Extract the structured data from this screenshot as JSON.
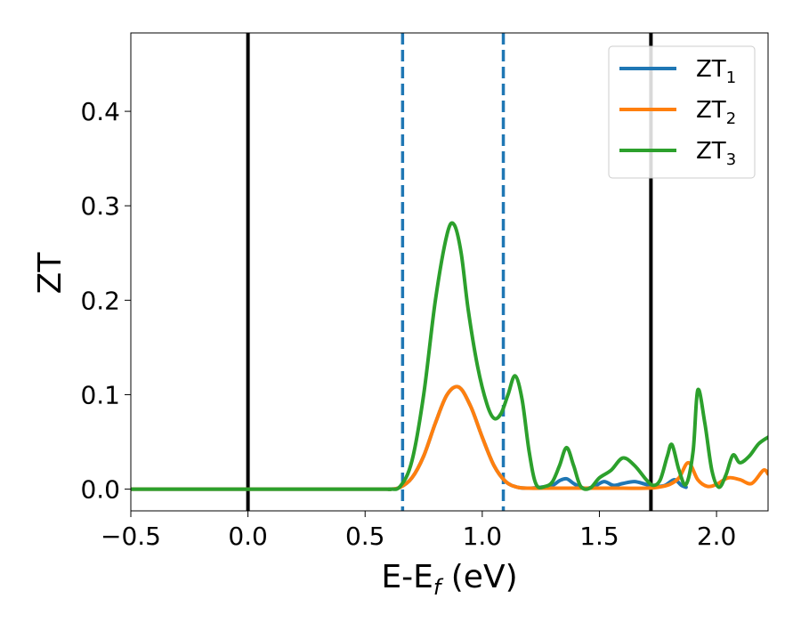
{
  "chart_data": {
    "type": "line",
    "xlabel": "E-E",
    "xlabel_sub": "f",
    "xlabel_unit": " (eV)",
    "ylabel": "ZT",
    "xlim": [
      -0.5,
      2.22
    ],
    "ylim": [
      -0.023,
      0.483
    ],
    "xticks": [
      -0.5,
      0.0,
      0.5,
      1.0,
      1.5,
      2.0
    ],
    "xtick_labels": [
      "−0.5",
      "0.0",
      "0.5",
      "1.0",
      "1.5",
      "2.0"
    ],
    "yticks": [
      0.0,
      0.1,
      0.2,
      0.3,
      0.4
    ],
    "ytick_labels": [
      "0.0",
      "0.1",
      "0.2",
      "0.3",
      "0.4"
    ],
    "grid": false,
    "legend_position": "top-right",
    "vlines": [
      {
        "x": 0.0,
        "style": "solid",
        "color": "#000000"
      },
      {
        "x": 1.72,
        "style": "solid",
        "color": "#000000"
      },
      {
        "x": 0.66,
        "style": "dashed",
        "color": "#1f77b4"
      },
      {
        "x": 1.09,
        "style": "dashed",
        "color": "#1f77b4"
      }
    ],
    "series": [
      {
        "name": "ZT",
        "sub": "1",
        "color": "#1f77b4",
        "x": [
          -0.5,
          0.5,
          0.6,
          0.65,
          0.7,
          0.75,
          0.8,
          0.85,
          0.9,
          0.95,
          1.0,
          1.05,
          1.1,
          1.15,
          1.2,
          1.25,
          1.3,
          1.33,
          1.36,
          1.39,
          1.42,
          1.45,
          1.48,
          1.52,
          1.56,
          1.6,
          1.65,
          1.7,
          1.74,
          1.78,
          1.82,
          1.85,
          1.87
        ],
        "y": [
          0.0,
          0.0,
          0.0,
          0.002,
          0.012,
          0.035,
          0.07,
          0.1,
          0.108,
          0.088,
          0.055,
          0.025,
          0.008,
          0.002,
          0.001,
          0.002,
          0.004,
          0.009,
          0.011,
          0.006,
          0.002,
          0.001,
          0.003,
          0.008,
          0.004,
          0.006,
          0.008,
          0.005,
          0.003,
          0.004,
          0.01,
          0.004,
          0.002
        ]
      },
      {
        "name": "ZT",
        "sub": "2",
        "color": "#ff7f0e",
        "x": [
          -0.5,
          0.5,
          0.6,
          0.65,
          0.7,
          0.75,
          0.8,
          0.85,
          0.9,
          0.95,
          1.0,
          1.05,
          1.1,
          1.15,
          1.2,
          1.25,
          1.3,
          1.4,
          1.5,
          1.6,
          1.7,
          1.75,
          1.8,
          1.84,
          1.88,
          1.92,
          1.96,
          2.0,
          2.05,
          2.1,
          2.15,
          2.2,
          2.22
        ],
        "y": [
          0.0,
          0.0,
          0.0,
          0.002,
          0.012,
          0.035,
          0.07,
          0.1,
          0.108,
          0.088,
          0.055,
          0.025,
          0.008,
          0.002,
          0.001,
          0.001,
          0.001,
          0.001,
          0.001,
          0.001,
          0.001,
          0.002,
          0.005,
          0.012,
          0.028,
          0.01,
          0.003,
          0.005,
          0.012,
          0.01,
          0.006,
          0.02,
          0.016
        ]
      },
      {
        "name": "ZT",
        "sub": "3",
        "color": "#2ca02c",
        "x": [
          -0.5,
          0.5,
          0.6,
          0.65,
          0.7,
          0.75,
          0.8,
          0.85,
          0.88,
          0.91,
          0.94,
          0.98,
          1.02,
          1.05,
          1.08,
          1.11,
          1.14,
          1.17,
          1.2,
          1.23,
          1.27,
          1.3,
          1.33,
          1.36,
          1.39,
          1.42,
          1.46,
          1.5,
          1.55,
          1.6,
          1.65,
          1.7,
          1.73,
          1.76,
          1.79,
          1.81,
          1.84,
          1.87,
          1.9,
          1.92,
          1.95,
          1.98,
          2.01,
          2.04,
          2.07,
          2.1,
          2.14,
          2.18,
          2.22
        ],
        "y": [
          0.0,
          0.0,
          0.0,
          0.003,
          0.03,
          0.1,
          0.2,
          0.27,
          0.28,
          0.25,
          0.19,
          0.13,
          0.09,
          0.075,
          0.08,
          0.1,
          0.12,
          0.095,
          0.04,
          0.005,
          0.003,
          0.008,
          0.025,
          0.044,
          0.025,
          0.003,
          0.001,
          0.012,
          0.02,
          0.033,
          0.025,
          0.01,
          0.004,
          0.01,
          0.035,
          0.047,
          0.02,
          0.005,
          0.04,
          0.105,
          0.07,
          0.02,
          0.002,
          0.015,
          0.036,
          0.028,
          0.035,
          0.048,
          0.055
        ]
      }
    ]
  }
}
